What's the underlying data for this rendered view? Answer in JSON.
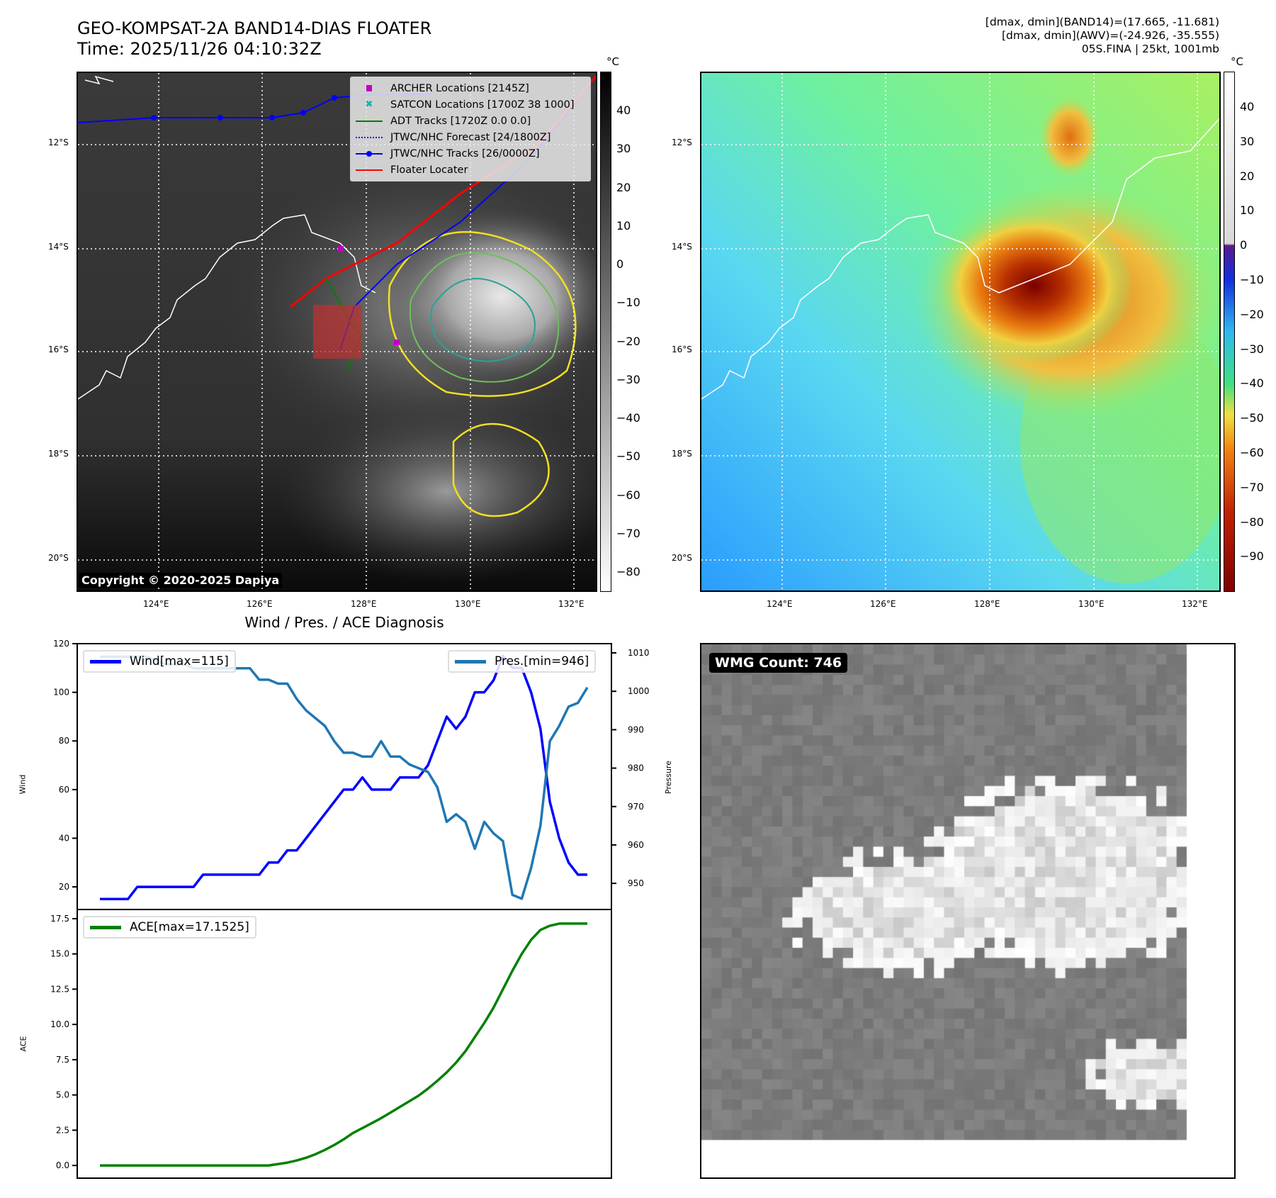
{
  "header": {
    "title_line1": "GEO-KOMPSAT-2A BAND14-DIAS FLOATER",
    "title_line2": "Time: 2025/11/26 04:10:32Z",
    "info_line1": "[dmax, dmin](BAND14)=(17.665, -11.681)",
    "info_line2": "[dmax, dmin](AWV)=(-24.926, -35.555)",
    "info_line3": "05S.FINA | 25kt, 1001mb"
  },
  "maps": {
    "unit": "°C",
    "lon_ticks": [
      "124°E",
      "126°E",
      "128°E",
      "130°E",
      "132°E"
    ],
    "lat_ticks": [
      "12°S",
      "14°S",
      "16°S",
      "18°S",
      "20°S"
    ],
    "copyright": "Copyright © 2020-2025 Dapiya",
    "left_colorbar_ticks": [
      "40",
      "30",
      "20",
      "10",
      "0",
      "−10",
      "−20",
      "−30",
      "−40",
      "−50",
      "−60",
      "−70",
      "−80"
    ],
    "right_colorbar_ticks": [
      "40",
      "30",
      "20",
      "10",
      "0",
      "−10",
      "−20",
      "−30",
      "−40",
      "−50",
      "−60",
      "−70",
      "−80",
      "−90"
    ],
    "legend": [
      {
        "label": "ARCHER Locations [2145Z]",
        "icon": "square-marker",
        "color": "#c000c0"
      },
      {
        "label": "SATCON Locations [1700Z 38 1000]",
        "icon": "x-marker",
        "color": "#17b0b0"
      },
      {
        "label": "ADT Tracks [1720Z 0.0 0.0]",
        "icon": "solid-line",
        "color": "#008000"
      },
      {
        "label": "JTWC/NHC Forecast [24/1800Z]",
        "icon": "dotted-line",
        "color": "#0000ff"
      },
      {
        "label": "JTWC/NHC Tracks [26/0000Z]",
        "icon": "line-dot",
        "color": "#0000ff"
      },
      {
        "label": "Floater Locater",
        "icon": "solid-line",
        "color": "#ff0000"
      }
    ]
  },
  "wmg": {
    "label": "WMG Count: 746"
  },
  "chart_data": [
    {
      "type": "line",
      "title": "Wind / Pres. / ACE Diagnosis",
      "ylabel": "Wind",
      "y2label": "Pressure",
      "ylim": [
        10.7,
        120
      ],
      "y2lim": [
        943.2,
        1012.4
      ],
      "yticks": [
        20,
        40,
        60,
        80,
        100,
        120
      ],
      "y2ticks": [
        950,
        960,
        970,
        980,
        990,
        1000,
        1010
      ],
      "series": [
        {
          "name": "Wind[max=115]",
          "color": "#0000ff",
          "axis": "left",
          "values": [
            15,
            15,
            15,
            15,
            20,
            20,
            20,
            20,
            20,
            20,
            20,
            25,
            25,
            25,
            25,
            25,
            25,
            25,
            30,
            30,
            35,
            35,
            40,
            45,
            50,
            55,
            60,
            60,
            65,
            60,
            60,
            60,
            65,
            65,
            65,
            70,
            80,
            90,
            85,
            90,
            100,
            100,
            105,
            115,
            110,
            110,
            100,
            85,
            55,
            40,
            30,
            25,
            25
          ]
        },
        {
          "name": "Pres.[min=946]",
          "color": "#1f77b4",
          "axis": "right",
          "values": [
            1009,
            1009,
            1009,
            1009,
            1009,
            1009,
            1008,
            1007,
            1007,
            1007,
            1006,
            1006,
            1006,
            1006,
            1006,
            1006,
            1006,
            1003,
            1003,
            1002,
            1002,
            998,
            995,
            993,
            991,
            987,
            984,
            984,
            983,
            983,
            987,
            983,
            983,
            981,
            980,
            979,
            975,
            966,
            968,
            966,
            959,
            966,
            963,
            961,
            947,
            946,
            954,
            965,
            987,
            991,
            996,
            997,
            1001
          ]
        }
      ]
    },
    {
      "type": "line",
      "ylabel": "ACE",
      "ylim": [
        -0.9,
        18.15
      ],
      "yticks": [
        "0.0",
        "2.5",
        "5.0",
        "7.5",
        "10.0",
        "12.5",
        "15.0",
        "17.5"
      ],
      "series": [
        {
          "name": "ACE[max=17.1525]",
          "color": "#008000",
          "values": [
            0,
            0,
            0,
            0,
            0,
            0,
            0,
            0,
            0,
            0,
            0,
            0,
            0,
            0,
            0,
            0,
            0,
            0,
            0,
            0.1,
            0.2,
            0.35,
            0.55,
            0.8,
            1.1,
            1.45,
            1.85,
            2.3,
            2.65,
            3.0,
            3.35,
            3.75,
            4.15,
            4.55,
            4.95,
            5.45,
            6.0,
            6.6,
            7.3,
            8.1,
            9.1,
            10.1,
            11.2,
            12.5,
            13.8,
            15.0,
            16.0,
            16.7,
            17.0,
            17.15,
            17.15,
            17.15,
            17.15
          ]
        }
      ]
    }
  ]
}
